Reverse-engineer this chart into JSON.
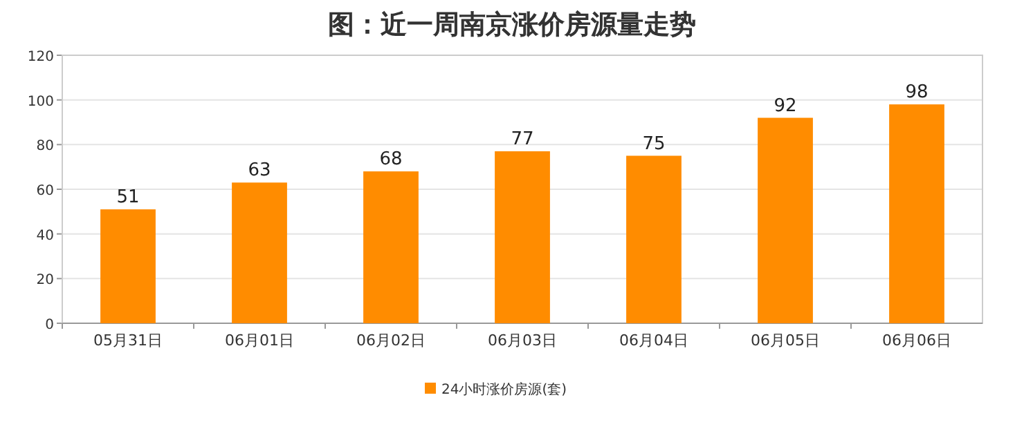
{
  "chart_data": {
    "type": "bar",
    "title": "图：近一周南京涨价房源量走势",
    "categories": [
      "05月31日",
      "06月01日",
      "06月02日",
      "06月03日",
      "06月04日",
      "06月05日",
      "06月06日"
    ],
    "series": [
      {
        "name": "24小时涨价房源(套)",
        "color": "#ff8c00",
        "values": [
          51,
          63,
          68,
          77,
          75,
          92,
          98
        ]
      }
    ],
    "ylim": [
      0,
      120
    ],
    "yticks": [
      0,
      20,
      40,
      60,
      80,
      100,
      120
    ],
    "grid": "y",
    "legend": "bottom",
    "data_labels": true
  }
}
